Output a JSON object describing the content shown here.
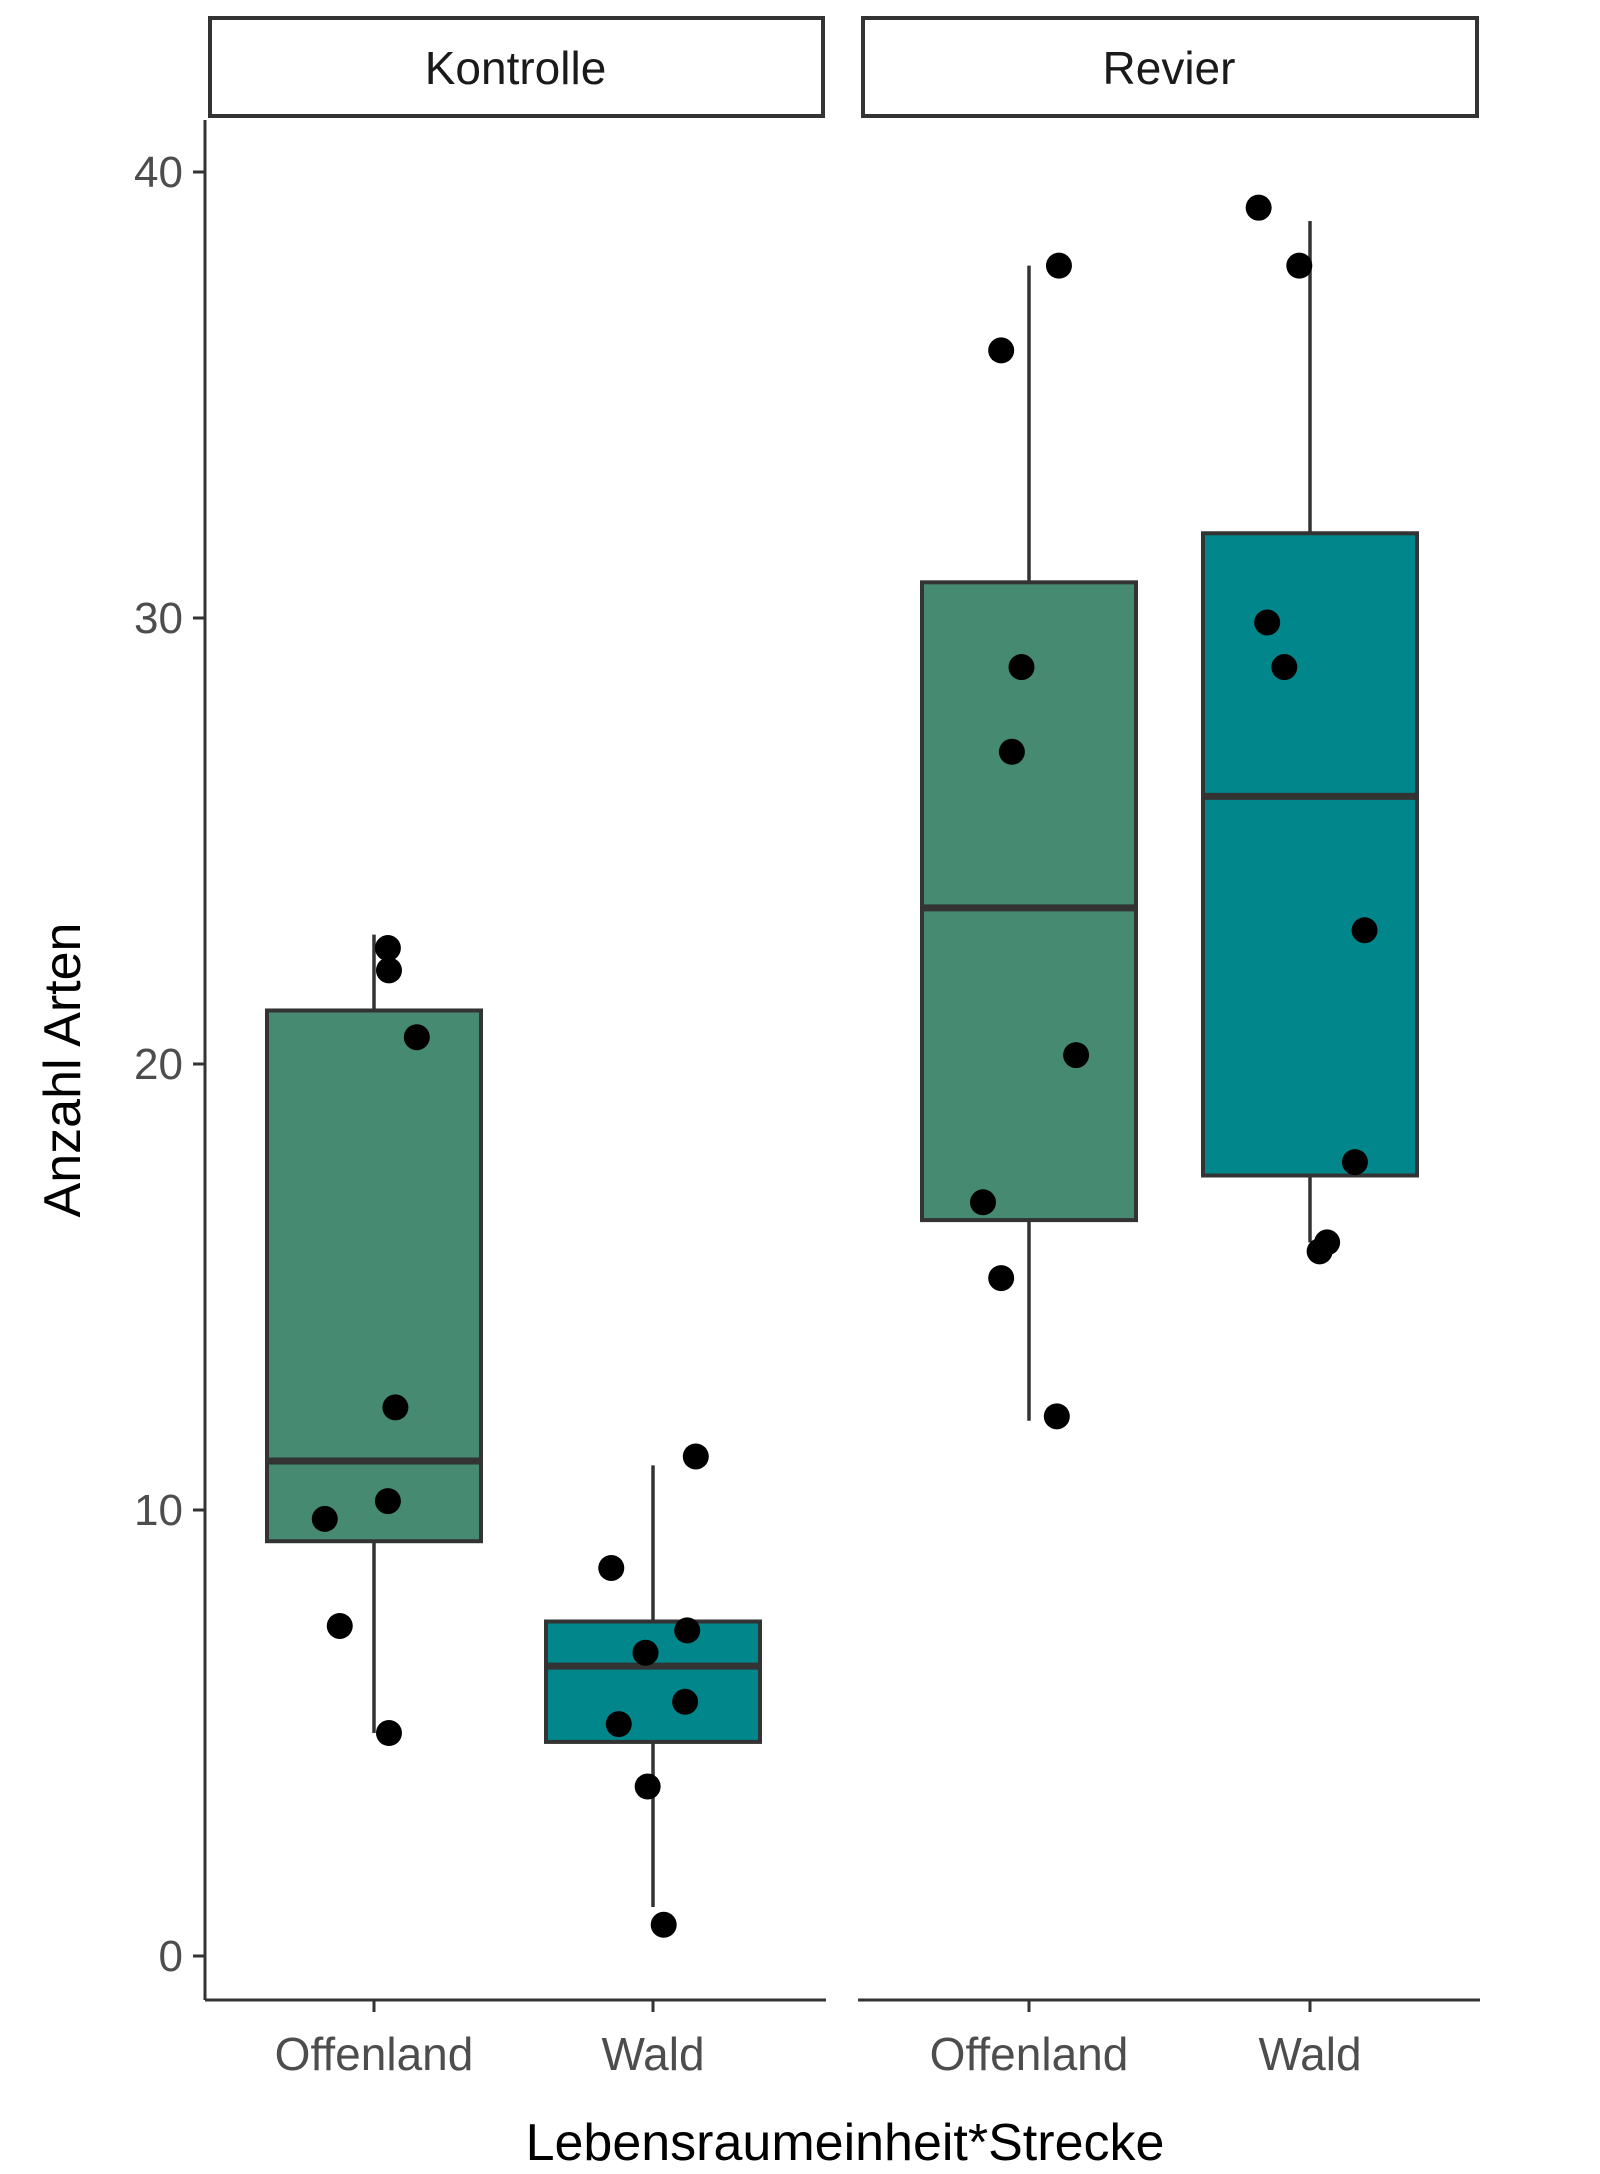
{
  "chart_data": {
    "type": "boxplot",
    "xlabel": "Lebensraumeinheit*Strecke",
    "ylabel": "Anzahl Arten",
    "ylim": [
      0,
      40
    ],
    "yticks": [
      0,
      10,
      20,
      30,
      40
    ],
    "grid": false,
    "legend": "none",
    "categories": [
      "Offenland",
      "Wald"
    ],
    "colors": {
      "Offenland": "#468a72",
      "Wald": "#00868b",
      "outline": "#333333",
      "points": "#000000"
    },
    "panels": [
      {
        "strip_label": "Kontrolle",
        "boxes": [
          {
            "category": "Offenland",
            "whisker_low": 5.0,
            "q1": 9.3,
            "median": 11.1,
            "q3": 21.2,
            "whisker_high": 22.9,
            "points": [
              {
                "x": -0.46,
                "y": 9.8
              },
              {
                "x": -0.32,
                "y": 7.4
              },
              {
                "x": 0.14,
                "y": 5.0
              },
              {
                "x": 0.13,
                "y": 10.2
              },
              {
                "x": 0.2,
                "y": 12.3
              },
              {
                "x": 0.4,
                "y": 20.6
              },
              {
                "x": 0.14,
                "y": 22.1
              },
              {
                "x": 0.13,
                "y": 22.6
              }
            ]
          },
          {
            "category": "Wald",
            "whisker_low": 1.1,
            "q1": 4.8,
            "median": 6.5,
            "q3": 7.5,
            "whisker_high": 11.0,
            "points": [
              {
                "x": -0.39,
                "y": 8.7
              },
              {
                "x": -0.32,
                "y": 5.2
              },
              {
                "x": -0.07,
                "y": 6.8
              },
              {
                "x": -0.05,
                "y": 3.8
              },
              {
                "x": 0.1,
                "y": 0.7
              },
              {
                "x": 0.3,
                "y": 5.7
              },
              {
                "x": 0.32,
                "y": 7.3
              },
              {
                "x": 0.4,
                "y": 11.2
              }
            ]
          }
        ]
      },
      {
        "strip_label": "Revier",
        "boxes": [
          {
            "category": "Offenland",
            "whisker_low": 12.0,
            "q1": 16.5,
            "median": 23.5,
            "q3": 30.8,
            "whisker_high": 37.9,
            "points": [
              {
                "x": -0.43,
                "y": 16.9
              },
              {
                "x": -0.26,
                "y": 15.2
              },
              {
                "x": -0.26,
                "y": 36.0
              },
              {
                "x": -0.16,
                "y": 27.0
              },
              {
                "x": -0.07,
                "y": 28.9
              },
              {
                "x": 0.26,
                "y": 12.1
              },
              {
                "x": 0.28,
                "y": 37.9
              },
              {
                "x": 0.44,
                "y": 20.2
              }
            ]
          },
          {
            "category": "Wald",
            "whisker_low": 16.0,
            "q1": 17.5,
            "median": 26.0,
            "q3": 31.9,
            "whisker_high": 38.9,
            "points": [
              {
                "x": -0.48,
                "y": 39.2
              },
              {
                "x": -0.4,
                "y": 29.9
              },
              {
                "x": -0.24,
                "y": 28.9
              },
              {
                "x": -0.1,
                "y": 37.9
              },
              {
                "x": 0.09,
                "y": 15.8
              },
              {
                "x": 0.16,
                "y": 16.0
              },
              {
                "x": 0.42,
                "y": 17.8
              },
              {
                "x": 0.51,
                "y": 23.0
              }
            ]
          }
        ]
      }
    ]
  }
}
